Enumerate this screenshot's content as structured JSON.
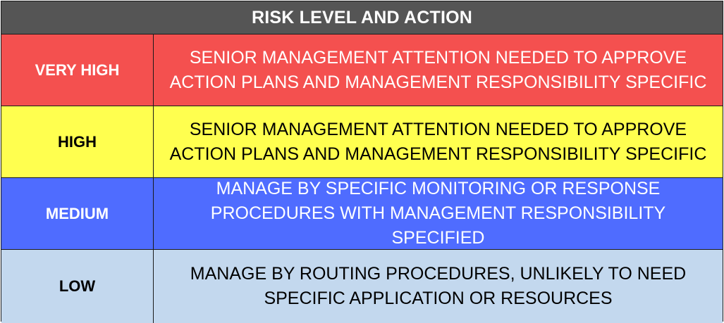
{
  "header": {
    "title": "RISK LEVEL AND ACTION"
  },
  "rows": [
    {
      "level": "VERY HIGH",
      "action": "SENIOR MANAGEMENT ATTENTION NEEDED TO APPROVE ACTION PLANS AND MANAGEMENT RESPONSIBILITY SPECIFIC",
      "background": "#f4504f",
      "text_color": "#ffffff"
    },
    {
      "level": "HIGH",
      "action": "SENIOR MANAGEMENT ATTENTION NEEDED TO APPROVE ACTION PLANS AND MANAGEMENT RESPONSIBILITY SPECIFIC",
      "background": "#ffff4f",
      "text_color": "#000000"
    },
    {
      "level": "MEDIUM",
      "action": "MANAGE BY SPECIFIC MONITORING OR RESPONSE PROCEDURES WITH MANAGEMENT RESPONSIBILITY SPECIFIED",
      "background": "#4f6cff",
      "text_color": "#ffffff"
    },
    {
      "level": "LOW",
      "action": "MANAGE BY ROUTING PROCEDURES, UNLIKELY TO NEED SPECIFIC APPLICATION OR RESOURCES",
      "background": "#c3d8ee",
      "text_color": "#000000"
    }
  ],
  "colors": {
    "header_background": "#555555",
    "header_text": "#ffffff",
    "border": "#1a1a1a"
  }
}
